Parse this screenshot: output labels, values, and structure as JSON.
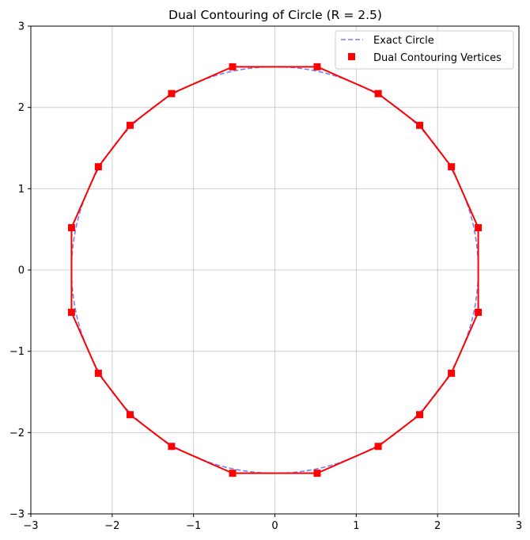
{
  "chart_data": {
    "type": "line",
    "title": "Dual Contouring of Circle (R = 2.5)",
    "xlabel": "",
    "ylabel": "",
    "xlim": [
      -3,
      3
    ],
    "ylim": [
      -3,
      3
    ],
    "grid": true,
    "x_ticks": [
      -3,
      -2,
      -1,
      0,
      1,
      2,
      3
    ],
    "y_ticks": [
      -3,
      -2,
      -1,
      0,
      1,
      2,
      3
    ],
    "x_tick_labels": [
      "−3",
      "−2",
      "−1",
      "0",
      "1",
      "2",
      "3"
    ],
    "y_tick_labels": [
      "−3",
      "−2",
      "−1",
      "0",
      "1",
      "2",
      "3"
    ],
    "legend_position": "top-right",
    "series": [
      {
        "name": "Exact Circle",
        "style": "dashed",
        "color": "#7b7bff",
        "shape": "circle",
        "radius": 2.5,
        "center": [
          0,
          0
        ]
      },
      {
        "name": "",
        "style": "solid",
        "color": "#ff0000",
        "closed": true,
        "points": [
          [
            0.52,
            2.5
          ],
          [
            1.27,
            2.17
          ],
          [
            1.78,
            1.78
          ],
          [
            2.17,
            1.27
          ],
          [
            2.5,
            0.52
          ],
          [
            2.5,
            -0.52
          ],
          [
            2.17,
            -1.27
          ],
          [
            1.78,
            -1.78
          ],
          [
            1.27,
            -2.17
          ],
          [
            0.52,
            -2.5
          ],
          [
            -0.52,
            -2.5
          ],
          [
            -1.27,
            -2.17
          ],
          [
            -1.78,
            -1.78
          ],
          [
            -2.17,
            -1.27
          ],
          [
            -2.5,
            -0.52
          ],
          [
            -2.5,
            0.52
          ],
          [
            -2.17,
            1.27
          ],
          [
            -1.78,
            1.78
          ],
          [
            -1.27,
            2.17
          ],
          [
            -0.52,
            2.5
          ]
        ]
      },
      {
        "name": "Dual Contouring Vertices",
        "style": "markers",
        "marker": "square",
        "color": "#ff0000",
        "points": [
          [
            0.52,
            2.5
          ],
          [
            1.27,
            2.17
          ],
          [
            1.78,
            1.78
          ],
          [
            2.17,
            1.27
          ],
          [
            2.5,
            0.52
          ],
          [
            2.5,
            -0.52
          ],
          [
            2.17,
            -1.27
          ],
          [
            1.78,
            -1.78
          ],
          [
            1.27,
            -2.17
          ],
          [
            0.52,
            -2.5
          ],
          [
            -0.52,
            -2.5
          ],
          [
            -1.27,
            -2.17
          ],
          [
            -1.78,
            -1.78
          ],
          [
            -2.17,
            -1.27
          ],
          [
            -2.5,
            -0.52
          ],
          [
            -2.5,
            0.52
          ],
          [
            -2.17,
            1.27
          ],
          [
            -1.78,
            1.78
          ],
          [
            -1.27,
            2.17
          ],
          [
            -0.52,
            2.5
          ]
        ]
      }
    ]
  }
}
